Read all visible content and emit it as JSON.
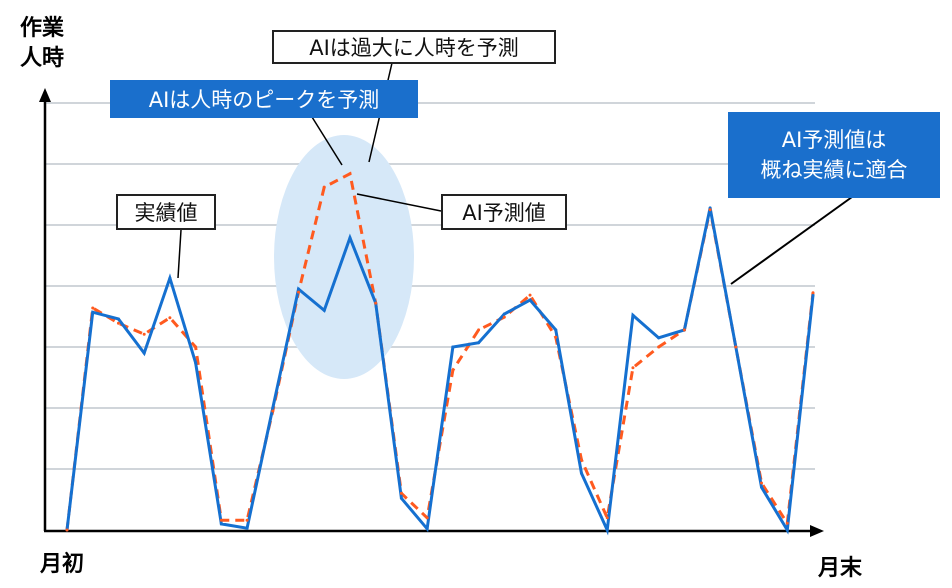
{
  "chart_data": {
    "type": "line",
    "ylabel": "作業人時",
    "x_start_label": "月初",
    "x_end_label": "月末",
    "x": [
      1,
      2,
      3,
      4,
      5,
      6,
      7,
      8,
      9,
      10,
      11,
      12,
      13,
      14,
      15,
      16,
      17,
      18,
      19,
      20,
      21,
      22,
      23,
      24,
      25,
      26,
      27,
      28,
      29,
      30
    ],
    "ylim": [
      0,
      7.3
    ],
    "grid": true,
    "gridline_count": 7,
    "series": [
      {
        "name": "実績値",
        "color": "#1570d0",
        "style": "solid",
        "values": [
          0,
          3.57,
          3.46,
          2.9,
          4.13,
          2.74,
          0.1,
          0.03,
          2.0,
          3.95,
          3.6,
          4.79,
          3.72,
          0.52,
          0.02,
          3.0,
          3.07,
          3.54,
          3.77,
          3.28,
          0.93,
          0,
          3.52,
          3.15,
          3.28,
          5.28,
          3.0,
          0.7,
          0,
          3.85
        ]
      },
      {
        "name": "AI予測値",
        "color": "#ff5a1f",
        "style": "dashed",
        "values": [
          0,
          3.64,
          3.39,
          3.21,
          3.48,
          3.0,
          0.16,
          0.16,
          1.95,
          3.9,
          5.62,
          5.84,
          3.72,
          0.6,
          0.2,
          2.62,
          3.28,
          3.49,
          3.85,
          3.16,
          1.15,
          0.2,
          2.66,
          3.0,
          3.28,
          5.25,
          3.0,
          0.77,
          0.11,
          3.89
        ]
      }
    ],
    "highlight_color": "#d6e8f8",
    "annotations": {
      "overpredict": "AIは過大に人時を予測",
      "peak": "AIは人時のピークを予測",
      "actual": "実績値",
      "forecast": "AI予測値",
      "fit_line1": "AI予測値は",
      "fit_line2": "概ね実績に適合"
    },
    "ylabel_line1": "作業",
    "ylabel_line2": "人時"
  }
}
